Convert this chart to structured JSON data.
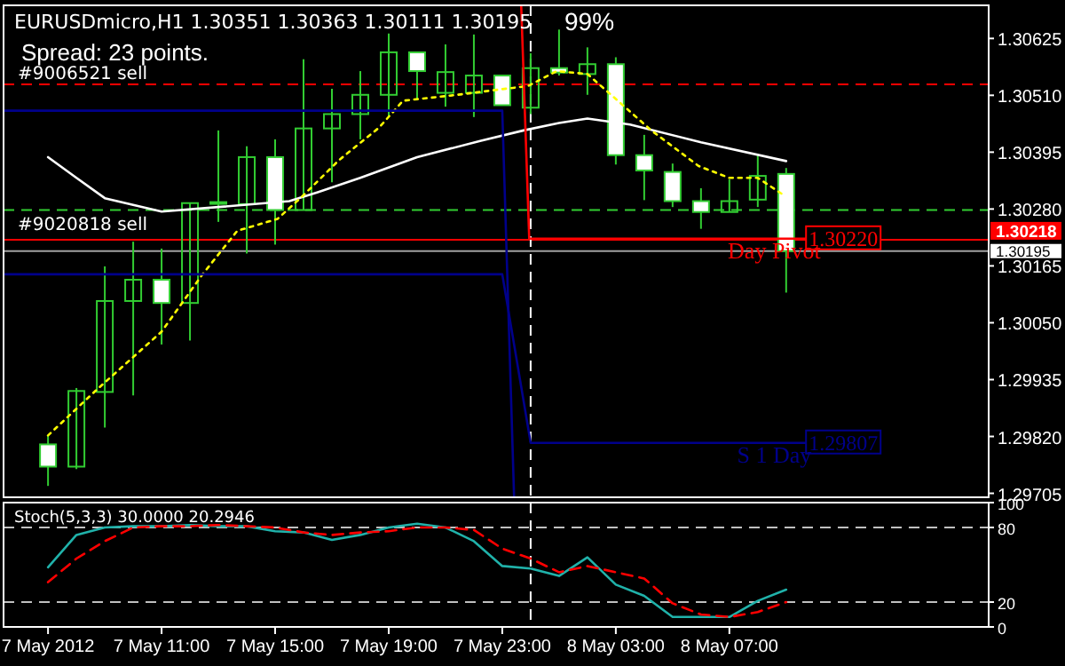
{
  "chart_data": [
    {
      "type": "candlestick",
      "title": "EURUSDmicro,H1  1.30351 1.30363 1.30111 1.30195",
      "color": "#32cd32",
      "x": [
        "2012-05-07T07:00",
        "2012-05-07T08:00",
        "2012-05-07T09:00",
        "2012-05-07T10:00",
        "2012-05-07T11:00",
        "2012-05-07T12:00",
        "2012-05-07T13:00",
        "2012-05-07T14:00",
        "2012-05-07T15:00",
        "2012-05-07T16:00",
        "2012-05-07T17:00",
        "2012-05-07T18:00",
        "2012-05-07T19:00",
        "2012-05-07T20:00",
        "2012-05-07T21:00",
        "2012-05-07T22:00",
        "2012-05-07T23:00",
        "2012-05-08T00:00",
        "2012-05-08T01:00",
        "2012-05-08T02:00",
        "2012-05-08T03:00",
        "2012-05-08T04:00",
        "2012-05-08T05:00",
        "2012-05-08T06:00",
        "2012-05-08T07:00",
        "2012-05-08T08:00",
        "2012-05-08T09:00"
      ],
      "ohlc": [
        [
          1.29804,
          1.29822,
          1.2972,
          1.29759
        ],
        [
          1.29759,
          1.29918,
          1.29754,
          1.29912
        ],
        [
          1.2991,
          1.30164,
          1.29838,
          1.30094
        ],
        [
          1.30094,
          1.30214,
          1.29903,
          1.30137
        ],
        [
          1.30137,
          1.302,
          1.30006,
          1.3009
        ],
        [
          1.3009,
          1.30292,
          1.30014,
          1.30292
        ],
        [
          1.30292,
          1.30439,
          1.30254,
          1.30294
        ],
        [
          1.3029,
          1.30407,
          1.3019,
          1.30385
        ],
        [
          1.30385,
          1.30421,
          1.30208,
          1.30278
        ],
        [
          1.30278,
          1.30583,
          1.30278,
          1.30443
        ],
        [
          1.30443,
          1.30523,
          1.30334,
          1.30472
        ],
        [
          1.30472,
          1.30559,
          1.30421,
          1.30511
        ],
        [
          1.30511,
          1.30635,
          1.30467,
          1.30597
        ],
        [
          1.30597,
          1.30597,
          1.30502,
          1.30559
        ],
        [
          1.30515,
          1.30613,
          1.30487,
          1.30557
        ],
        [
          1.30515,
          1.30633,
          1.30466,
          1.3055
        ],
        [
          1.3055,
          1.3055,
          1.3049,
          1.3049
        ],
        [
          1.30485,
          1.30595,
          1.30472,
          1.30565
        ],
        [
          1.30565,
          1.30643,
          1.3055,
          1.30556
        ],
        [
          1.30553,
          1.30607,
          1.30511,
          1.30573
        ],
        [
          1.30573,
          1.30587,
          1.3037,
          1.30389
        ],
        [
          1.30389,
          1.3043,
          1.30298,
          1.30358
        ],
        [
          1.30355,
          1.30372,
          1.30284,
          1.30296
        ],
        [
          1.30296,
          1.30322,
          1.3024,
          1.30274
        ],
        [
          1.30274,
          1.3034,
          1.30274,
          1.30296
        ],
        [
          1.30299,
          1.30391,
          1.30284,
          1.30347
        ],
        [
          1.30351,
          1.30363,
          1.30111,
          1.30195
        ]
      ],
      "series": [
        {
          "type": "line",
          "color": "#ffffff",
          "x": [
            "2012-05-07T07:00",
            "2012-05-07T08:00",
            "2012-05-07T09:00",
            "2012-05-07T11:00",
            "2012-05-07T13:00",
            "2012-05-07T15:30",
            "2012-05-07T16:30",
            "2012-05-07T18:00",
            "2012-05-07T20:00",
            "2012-05-07T22:15",
            "2012-05-07T23:45",
            "2012-05-08T01:00",
            "2012-05-08T02:00",
            "2012-05-08T03:30",
            "2012-05-08T06:00",
            "2012-05-08T09:00"
          ],
          "values": [
            1.30385,
            1.30343,
            1.30302,
            1.30275,
            1.30284,
            1.30296,
            1.30314,
            1.30343,
            1.30385,
            1.30418,
            1.30439,
            1.30454,
            1.30463,
            1.30451,
            1.30415,
            1.30377
          ]
        },
        {
          "type": "line",
          "color": "#ffff00",
          "line_style": "dotted",
          "x": [
            "2012-05-07T07:00",
            "2012-05-07T08:40",
            "2012-05-07T11:00",
            "2012-05-07T12:25",
            "2012-05-07T13:40",
            "2012-05-07T15:05",
            "2012-05-07T16:00",
            "2012-05-07T17:15",
            "2012-05-07T18:40",
            "2012-05-07T19:30",
            "2012-05-07T21:25",
            "2012-05-07T23:55",
            "2012-05-08T00:55",
            "2012-05-08T02:00",
            "2012-05-08T02:50",
            "2012-05-08T04:15",
            "2012-05-08T05:55",
            "2012-05-08T07:00",
            "2012-05-08T08:00",
            "2012-05-08T08:55"
          ],
          "values": [
            1.29822,
            1.29912,
            1.30032,
            1.30146,
            1.30236,
            1.3026,
            1.30308,
            1.30379,
            1.30445,
            1.30499,
            1.30511,
            1.30529,
            1.30559,
            1.30553,
            1.30511,
            1.30439,
            1.30367,
            1.30343,
            1.30343,
            1.30308
          ]
        },
        {
          "type": "line",
          "color": "#00008b",
          "x": [
            "2012-05-07T05:26",
            "2012-05-07T23:00",
            "2012-05-07T23:25"
          ],
          "values": [
            1.30479,
            1.30479,
            1.29697
          ]
        },
        {
          "type": "line",
          "color": "#00008b",
          "x": [
            "2012-05-07T05:26",
            "2012-05-07T23:00",
            "2012-05-08T00:00",
            "2012-05-08T09:42"
          ],
          "values": [
            1.30148,
            1.30148,
            1.29807,
            1.29807
          ]
        },
        {
          "type": "line",
          "color": "#ff0000",
          "x": [
            "2012-05-07T23:40",
            "2012-05-07T23:57",
            "2012-05-08T09:42"
          ],
          "values": [
            1.30692,
            1.3022,
            1.3022
          ]
        }
      ],
      "xlim": [
        "2012-05-07T05:26",
        "2012-05-08T16:08"
      ],
      "ylim": [
        1.29697,
        1.30692
      ],
      "yticks": [
        1.30625,
        {
          "value": 1.3051,
          "label": "1.30510"
        },
        1.30395,
        {
          "value": 1.3028,
          "label": "1.30280"
        },
        1.30165,
        {
          "value": 1.3005,
          "label": "1.30050"
        },
        1.29935,
        {
          "value": 1.2982,
          "label": "1.29820"
        },
        1.29705
      ],
      "tick_labels": "y",
      "ref_lines": [
        {
          "axis": "y",
          "value": 1.30532,
          "label": "#9006521 sell",
          "color": "#ff0000",
          "line_style": "dashed"
        },
        {
          "axis": "y",
          "value": 1.30278,
          "label": "#9020818 sell",
          "color": "#32cd32",
          "line_style": "dashed"
        },
        {
          "axis": "y",
          "value": 1.30218,
          "label": "1.30218",
          "color": "#ff0000",
          "line_style": "solid"
        },
        {
          "axis": "y",
          "value": 1.30195,
          "label": "1.30195",
          "color": "#a0a0a0",
          "line_style": "solid"
        },
        {
          "axis": "x",
          "value": "2012-05-08T00:00",
          "color": "#ffffff",
          "line_style": "dashed"
        }
      ],
      "annotations": [
        "Spread: 23 points.",
        "99%",
        {
          "text": "1.30220",
          "x": "2012-05-08T09:42",
          "y": 1.3022
        },
        {
          "text": "Day Pivot",
          "x": "2012-05-08T08:35",
          "y": 1.3022
        },
        {
          "text": "1.29807",
          "x": "2012-05-08T09:42",
          "y": 1.29807
        },
        {
          "text": "S 1 Day",
          "x": "2012-05-08T08:35",
          "y": 1.29807
        }
      ]
    },
    {
      "type": "line",
      "title": "Stoch(5,3,3) 30.0000 20.2946",
      "series": [
        {
          "color": "#20b2aa",
          "x": [
            "2012-05-07T07:00",
            "2012-05-07T08:00",
            "2012-05-07T09:00",
            "2012-05-07T10:00",
            "2012-05-07T11:00",
            "2012-05-07T12:00",
            "2012-05-07T13:00",
            "2012-05-07T14:00",
            "2012-05-07T15:00",
            "2012-05-07T16:00",
            "2012-05-07T17:00",
            "2012-05-07T18:00",
            "2012-05-07T19:00",
            "2012-05-07T20:00",
            "2012-05-07T21:00",
            "2012-05-07T22:00",
            "2012-05-07T23:00",
            "2012-05-08T00:00",
            "2012-05-08T01:00",
            "2012-05-08T02:00",
            "2012-05-08T03:00",
            "2012-05-08T04:00",
            "2012-05-08T05:00",
            "2012-05-08T06:00",
            "2012-05-08T07:00",
            "2012-05-08T08:00",
            "2012-05-08T09:00"
          ],
          "values": [
            48,
            74,
            80,
            81,
            81,
            82,
            81,
            81,
            77,
            76,
            70,
            74,
            80,
            83,
            80,
            69,
            49,
            47,
            41,
            56,
            34,
            25,
            8,
            8,
            8,
            21,
            30
          ]
        },
        {
          "color": "#ff0000",
          "line_style": "dashed",
          "x": [
            "2012-05-07T07:00",
            "2012-05-07T08:00",
            "2012-05-07T09:00",
            "2012-05-07T10:00",
            "2012-05-07T11:00",
            "2012-05-07T12:00",
            "2012-05-07T13:00",
            "2012-05-07T14:00",
            "2012-05-07T15:00",
            "2012-05-07T16:00",
            "2012-05-07T17:00",
            "2012-05-07T18:00",
            "2012-05-07T19:00",
            "2012-05-07T20:00",
            "2012-05-07T21:00",
            "2012-05-07T22:00",
            "2012-05-07T23:00",
            "2012-05-08T00:00",
            "2012-05-08T01:00",
            "2012-05-08T02:00",
            "2012-05-08T03:00",
            "2012-05-08T04:00",
            "2012-05-08T05:00",
            "2012-05-08T06:00",
            "2012-05-08T07:00",
            "2012-05-08T08:00",
            "2012-05-08T09:00"
          ],
          "values": [
            36,
            55,
            69,
            80,
            81,
            81,
            82,
            81,
            80,
            76,
            74,
            76,
            77,
            80,
            80,
            78,
            63,
            55,
            44,
            49,
            44,
            39,
            19,
            10,
            8,
            12,
            20
          ]
        }
      ],
      "xlim": [
        "2012-05-07T05:26",
        "2012-05-08T16:08"
      ],
      "ylim": [
        0,
        100
      ],
      "yticks": [
        100,
        80,
        20,
        0
      ],
      "xticks": [
        {
          "value": "2012-05-07T07:00",
          "label": "7 May 2012"
        },
        {
          "value": "2012-05-07T11:00",
          "label": "7 May 11:00"
        },
        {
          "value": "2012-05-07T15:00",
          "label": "7 May 15:00"
        },
        {
          "value": "2012-05-07T19:00",
          "label": "7 May 19:00"
        },
        {
          "value": "2012-05-07T23:00",
          "label": "7 May 23:00"
        },
        {
          "value": "2012-05-08T03:00",
          "label": "8 May 03:00"
        },
        {
          "value": "2012-05-08T07:00",
          "label": "8 May 07:00"
        }
      ],
      "ref_lines": [
        {
          "axis": "y",
          "value": 80,
          "color": "#c0c0c0",
          "line_style": "dashed"
        },
        {
          "axis": "y",
          "value": 20,
          "color": "#c0c0c0",
          "line_style": "dashed"
        },
        {
          "axis": "x",
          "value": "2012-05-08T00:00",
          "color": "#ffffff",
          "line_style": "dashed"
        }
      ]
    }
  ]
}
